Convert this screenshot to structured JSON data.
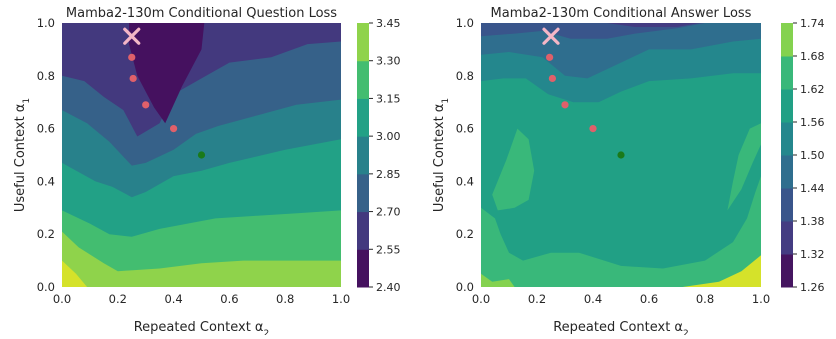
{
  "chart_data": [
    {
      "type": "contour",
      "title": "Mamba2-130m Conditional Question Loss",
      "xlabel": "Repeated Context α₂",
      "ylabel": "Useful Context α₁",
      "xlim": [
        0.0,
        1.0
      ],
      "ylim": [
        0.0,
        1.0
      ],
      "x_ticks": [
        "0.0",
        "0.2",
        "0.4",
        "0.6",
        "0.8",
        "1.0"
      ],
      "y_ticks": [
        "0.0",
        "0.2",
        "0.4",
        "0.6",
        "0.8",
        "1.0"
      ],
      "colorbar_levels": [
        "2.40",
        "2.55",
        "2.70",
        "2.85",
        "3.00",
        "3.15",
        "3.30",
        "3.45"
      ],
      "level_colors": [
        "#45115f",
        "#43397e",
        "#366189",
        "#28818b",
        "#22a186",
        "#43bd70",
        "#8fd34b",
        "#d5e22a"
      ],
      "contours": [
        [
          [
            0.0,
            1.0
          ],
          [
            0.0,
            0.53
          ],
          [
            0.0,
            0.47
          ],
          [
            0.12,
            0.4
          ],
          [
            0.18,
            0.38
          ],
          [
            0.25,
            0.34
          ],
          [
            0.3,
            0.36
          ],
          [
            0.4,
            0.42
          ],
          [
            0.5,
            0.44
          ],
          [
            0.6,
            0.47
          ],
          [
            0.8,
            0.52
          ],
          [
            1.0,
            0.56
          ],
          [
            1.0,
            1.0
          ]
        ],
        [
          [
            0.0,
            1.0
          ],
          [
            0.0,
            0.67
          ],
          [
            0.09,
            0.62
          ],
          [
            0.17,
            0.55
          ],
          [
            0.25,
            0.46
          ],
          [
            0.3,
            0.47
          ],
          [
            0.4,
            0.52
          ],
          [
            0.48,
            0.58
          ],
          [
            0.56,
            0.61
          ],
          [
            0.7,
            0.65
          ],
          [
            0.84,
            0.69
          ],
          [
            1.0,
            0.71
          ],
          [
            1.0,
            1.0
          ]
        ],
        [
          [
            0.0,
            1.0
          ],
          [
            0.0,
            0.8
          ],
          [
            0.08,
            0.78
          ],
          [
            0.15,
            0.72
          ],
          [
            0.22,
            0.67
          ],
          [
            0.27,
            0.57
          ],
          [
            0.35,
            0.62
          ],
          [
            0.4,
            0.73
          ],
          [
            0.5,
            0.79
          ],
          [
            0.6,
            0.85
          ],
          [
            0.75,
            0.87
          ],
          [
            0.88,
            0.92
          ],
          [
            1.0,
            0.93
          ],
          [
            1.0,
            1.0
          ]
        ],
        [
          [
            0.24,
            1.0
          ],
          [
            0.24,
            0.92
          ],
          [
            0.27,
            0.8
          ],
          [
            0.33,
            0.68
          ],
          [
            0.37,
            0.62
          ],
          [
            0.43,
            0.76
          ],
          [
            0.5,
            0.9
          ],
          [
            0.51,
            1.0
          ]
        ]
      ],
      "upper_contours": [
        [
          [
            0.0,
            0.0
          ],
          [
            0.0,
            0.29
          ],
          [
            0.1,
            0.24
          ],
          [
            0.17,
            0.2
          ],
          [
            0.25,
            0.19
          ],
          [
            0.35,
            0.22
          ],
          [
            0.45,
            0.24
          ],
          [
            0.55,
            0.26
          ],
          [
            0.7,
            0.27
          ],
          [
            0.85,
            0.28
          ],
          [
            1.0,
            0.29
          ],
          [
            1.0,
            0.0
          ]
        ],
        [
          [
            0.0,
            0.0
          ],
          [
            0.0,
            0.21
          ],
          [
            0.06,
            0.15
          ],
          [
            0.15,
            0.09
          ],
          [
            0.2,
            0.06
          ],
          [
            0.35,
            0.07
          ],
          [
            0.5,
            0.09
          ],
          [
            0.65,
            0.1
          ],
          [
            0.8,
            0.1
          ],
          [
            1.0,
            0.1
          ],
          [
            1.0,
            0.0
          ]
        ],
        [
          [
            0.0,
            0.0
          ],
          [
            0.0,
            0.1
          ],
          [
            0.05,
            0.05
          ],
          [
            0.09,
            0.0
          ]
        ]
      ],
      "markers": {
        "cross": {
          "x": 0.25,
          "y": 0.95
        },
        "red_points": [
          {
            "x": 0.25,
            "y": 0.87
          },
          {
            "x": 0.255,
            "y": 0.79
          },
          {
            "x": 0.3,
            "y": 0.69
          },
          {
            "x": 0.4,
            "y": 0.6
          }
        ],
        "green_point": {
          "x": 0.5,
          "y": 0.5
        }
      }
    },
    {
      "type": "contour",
      "title": "Mamba2-130m Conditional Answer Loss",
      "xlabel": "Repeated Context α₂",
      "ylabel": "Useful Context α₁",
      "xlim": [
        0.0,
        1.0
      ],
      "ylim": [
        0.0,
        1.0
      ],
      "x_ticks": [
        "0.0",
        "0.2",
        "0.4",
        "0.6",
        "0.8",
        "1.0"
      ],
      "y_ticks": [
        "0.0",
        "0.2",
        "0.4",
        "0.6",
        "0.8",
        "1.0"
      ],
      "colorbar_levels": [
        "1.26",
        "1.32",
        "1.38",
        "1.44",
        "1.50",
        "1.56",
        "1.62",
        "1.68",
        "1.74"
      ],
      "level_colors": [
        "#451560",
        "#443c82",
        "#39558b",
        "#2f6e8e",
        "#24878d",
        "#21a085",
        "#39b87a",
        "#84d24f",
        "#d5e22a"
      ],
      "base_level": 5,
      "contours_low": [
        [
          [
            0.0,
            1.0
          ],
          [
            0.0,
            0.78
          ],
          [
            0.08,
            0.79
          ],
          [
            0.16,
            0.79
          ],
          [
            0.24,
            0.73
          ],
          [
            0.33,
            0.7
          ],
          [
            0.42,
            0.7
          ],
          [
            0.5,
            0.74
          ],
          [
            0.6,
            0.78
          ],
          [
            0.75,
            0.79
          ],
          [
            0.9,
            0.81
          ],
          [
            1.0,
            0.81
          ],
          [
            1.0,
            1.0
          ]
        ],
        [
          [
            0.0,
            1.0
          ],
          [
            0.0,
            0.88
          ],
          [
            0.1,
            0.89
          ],
          [
            0.22,
            0.87
          ],
          [
            0.3,
            0.8
          ],
          [
            0.38,
            0.79
          ],
          [
            0.48,
            0.84
          ],
          [
            0.6,
            0.9
          ],
          [
            0.75,
            0.9
          ],
          [
            0.9,
            0.93
          ],
          [
            1.0,
            0.94
          ],
          [
            1.0,
            1.0
          ]
        ],
        [
          [
            0.0,
            1.0
          ],
          [
            0.0,
            0.95
          ],
          [
            0.12,
            0.96
          ],
          [
            0.22,
            0.97
          ],
          [
            0.32,
            0.94
          ],
          [
            0.45,
            0.94
          ],
          [
            0.55,
            0.96
          ],
          [
            0.7,
            0.98
          ],
          [
            0.8,
            1.0
          ]
        ]
      ],
      "upper_contours": [
        [
          [
            0.0,
            0.0
          ],
          [
            0.0,
            0.3
          ],
          [
            0.05,
            0.26
          ],
          [
            0.07,
            0.2
          ],
          [
            0.1,
            0.13
          ],
          [
            0.15,
            0.1
          ],
          [
            0.25,
            0.13
          ],
          [
            0.35,
            0.13
          ],
          [
            0.5,
            0.08
          ],
          [
            0.65,
            0.07
          ],
          [
            0.8,
            0.1
          ],
          [
            0.9,
            0.17
          ],
          [
            0.95,
            0.26
          ],
          [
            0.98,
            0.36
          ],
          [
            1.0,
            0.42
          ],
          [
            1.0,
            0.0
          ]
        ],
        [
          [
            0.0,
            0.0
          ],
          [
            0.0,
            0.05
          ],
          [
            0.04,
            0.02
          ],
          [
            0.1,
            0.03
          ],
          [
            0.12,
            0.0
          ]
        ],
        [
          [
            0.72,
            0.0
          ],
          [
            0.85,
            0.02
          ],
          [
            0.93,
            0.06
          ],
          [
            1.0,
            0.12
          ],
          [
            1.0,
            0.0
          ]
        ]
      ],
      "bump": [
        [
          0.04,
          0.35
        ],
        [
          0.09,
          0.48
        ],
        [
          0.13,
          0.6
        ],
        [
          0.17,
          0.56
        ],
        [
          0.19,
          0.44
        ],
        [
          0.17,
          0.33
        ],
        [
          0.12,
          0.3
        ],
        [
          0.06,
          0.29
        ]
      ],
      "blob": [
        [
          0.88,
          0.29
        ],
        [
          0.93,
          0.37
        ],
        [
          0.97,
          0.47
        ],
        [
          1.0,
          0.54
        ],
        [
          1.0,
          0.62
        ],
        [
          0.96,
          0.6
        ],
        [
          0.92,
          0.5
        ],
        [
          0.9,
          0.4
        ]
      ],
      "markers": {
        "cross": {
          "x": 0.25,
          "y": 0.95
        },
        "red_points": [
          {
            "x": 0.245,
            "y": 0.87
          },
          {
            "x": 0.255,
            "y": 0.79
          },
          {
            "x": 0.3,
            "y": 0.69
          },
          {
            "x": 0.4,
            "y": 0.6
          }
        ],
        "green_point": {
          "x": 0.5,
          "y": 0.5
        }
      }
    }
  ]
}
